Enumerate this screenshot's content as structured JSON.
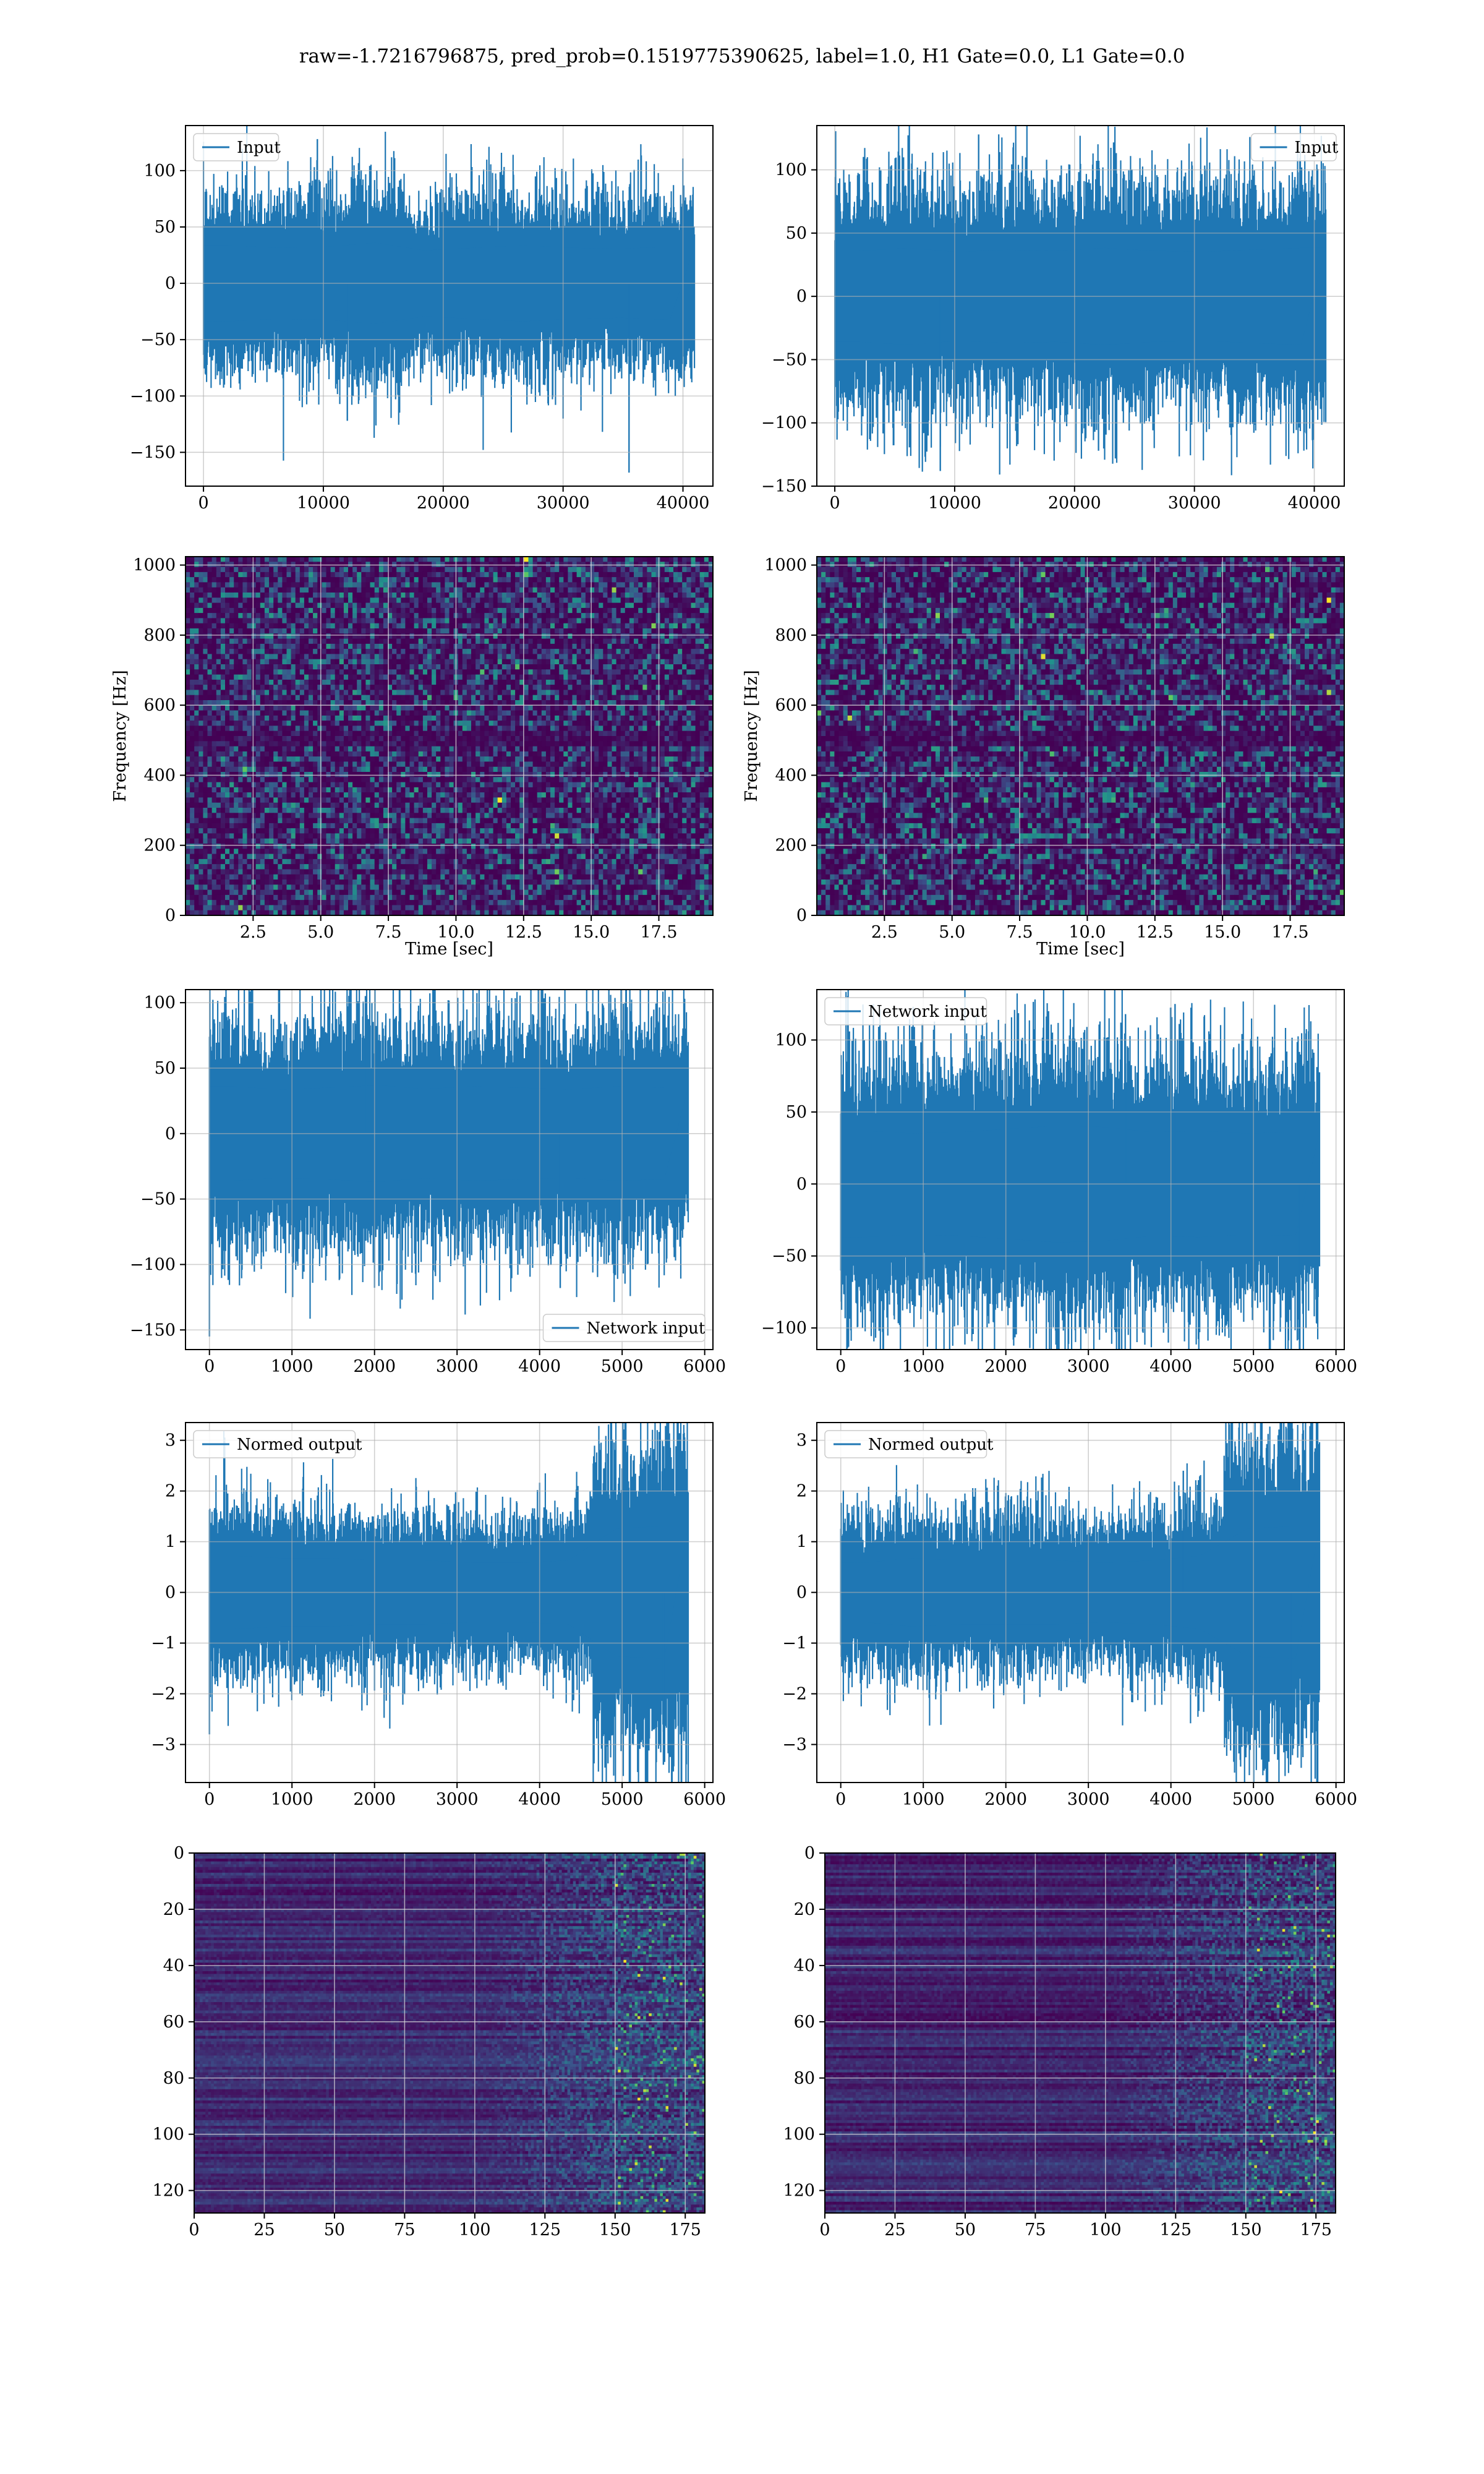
{
  "suptitle": "raw=-1.7216796875, pred_prob=0.1519775390625, label=1.0, H1 Gate=0.0, L1 Gate=0.0",
  "colors": {
    "series": "#1f77b4",
    "grid": "#b0b0b0",
    "viridis_low": "#440154",
    "viridis_high": "#fde725"
  },
  "chart_data": [
    {
      "id": "input-h1",
      "type": "line",
      "legend": {
        "label": "Input",
        "loc": "upper-left"
      },
      "xlim": [
        -1500,
        42500
      ],
      "ylim": [
        -180,
        140
      ],
      "xticks": [
        0,
        10000,
        20000,
        30000,
        40000
      ],
      "yticks": [
        -150,
        -100,
        -50,
        0,
        50,
        100
      ],
      "series": [
        {
          "name": "Input",
          "n": 40960,
          "envelope": [
            75,
            70,
            72,
            80,
            65,
            70,
            75,
            70,
            68,
            72
          ],
          "spikes": [
            {
              "x": 9500,
              "y": 128
            },
            {
              "x": 12000,
              "y": -122
            },
            {
              "x": 30000,
              "y": -120
            },
            {
              "x": 35500,
              "y": -168
            }
          ]
        }
      ]
    },
    {
      "id": "input-l1",
      "type": "line",
      "legend": {
        "label": "Input",
        "loc": "upper-right"
      },
      "xlim": [
        -1500,
        42500
      ],
      "ylim": [
        -150,
        135
      ],
      "xticks": [
        0,
        10000,
        20000,
        30000,
        40000
      ],
      "yticks": [
        -150,
        -100,
        -50,
        0,
        50,
        100
      ],
      "series": [
        {
          "name": "Input",
          "n": 40960,
          "envelope": [
            80,
            85,
            78,
            82,
            80,
            85,
            80,
            78,
            82,
            85
          ],
          "spikes": [
            {
              "x": 8800,
              "y": -138
            },
            {
              "x": 12000,
              "y": 128
            },
            {
              "x": 22000,
              "y": -122
            }
          ]
        }
      ]
    },
    {
      "id": "spec-h1",
      "type": "heatmap",
      "xlabel": "Time [sec]",
      "ylabel": "Frequency [Hz]",
      "xlim": [
        0,
        19.5
      ],
      "ylim": [
        0,
        1024
      ],
      "xticks": [
        2.5,
        5.0,
        7.5,
        10.0,
        12.5,
        15.0,
        17.5
      ],
      "yticks": [
        0,
        200,
        400,
        600,
        800,
        1000
      ],
      "colormap": "viridis"
    },
    {
      "id": "spec-l1",
      "type": "heatmap",
      "xlabel": "Time [sec]",
      "ylabel": "Frequency [Hz]",
      "xlim": [
        0,
        19.5
      ],
      "ylim": [
        0,
        1024
      ],
      "xticks": [
        2.5,
        5.0,
        7.5,
        10.0,
        12.5,
        15.0,
        17.5
      ],
      "yticks": [
        0,
        200,
        400,
        600,
        800,
        1000
      ],
      "colormap": "viridis"
    },
    {
      "id": "net-h1",
      "type": "line",
      "legend": {
        "label": "Network input",
        "loc": "lower-right"
      },
      "xlim": [
        -290,
        6100
      ],
      "ylim": [
        -165,
        110
      ],
      "xticks": [
        0,
        1000,
        2000,
        3000,
        4000,
        5000,
        6000
      ],
      "yticks": [
        -150,
        -100,
        -50,
        0,
        50,
        100
      ],
      "series": [
        {
          "name": "Network input",
          "n": 5800,
          "envelope": [
            80,
            75,
            78,
            82,
            76,
            80,
            78,
            75,
            80,
            78
          ],
          "spikes": [
            {
              "x": 0,
              "y": -155
            },
            {
              "x": 1900,
              "y": 102
            },
            {
              "x": 4250,
              "y": -118
            }
          ]
        }
      ]
    },
    {
      "id": "net-l1",
      "type": "line",
      "legend": {
        "label": "Network input",
        "loc": "upper-left"
      },
      "xlim": [
        -290,
        6100
      ],
      "ylim": [
        -115,
        135
      ],
      "xticks": [
        0,
        1000,
        2000,
        3000,
        4000,
        5000,
        6000
      ],
      "yticks": [
        -100,
        -50,
        0,
        50,
        100
      ],
      "series": [
        {
          "name": "Network input",
          "n": 5800,
          "envelope": [
            82,
            78,
            80,
            85,
            90,
            88,
            80,
            82,
            78,
            80
          ],
          "spikes": [
            {
              "x": 3450,
              "y": 118
            },
            {
              "x": 4050,
              "y": 125
            },
            {
              "x": 5550,
              "y": -108
            }
          ]
        }
      ]
    },
    {
      "id": "norm-h1",
      "type": "line",
      "legend": {
        "label": "Normed output",
        "loc": "upper-left"
      },
      "xlim": [
        -290,
        6100
      ],
      "ylim": [
        -3.75,
        3.35
      ],
      "xticks": [
        0,
        1000,
        2000,
        3000,
        4000,
        5000,
        6000
      ],
      "yticks": [
        -3,
        -2,
        -1,
        0,
        1,
        2,
        3
      ],
      "series": [
        {
          "name": "Normed output",
          "n": 5800,
          "envelope": [
            1.6,
            1.5,
            1.5,
            1.4,
            1.4,
            1.3,
            1.3,
            1.4,
            2.8,
            2.9
          ],
          "spikes": [
            {
              "x": 0,
              "y": -2.8
            },
            {
              "x": 5450,
              "y": 3.1
            },
            {
              "x": 5500,
              "y": -3.4
            }
          ]
        }
      ]
    },
    {
      "id": "norm-l1",
      "type": "line",
      "legend": {
        "label": "Normed output",
        "loc": "upper-left"
      },
      "xlim": [
        -290,
        6100
      ],
      "ylim": [
        -3.75,
        3.35
      ],
      "xticks": [
        0,
        1000,
        2000,
        3000,
        4000,
        5000,
        6000
      ],
      "yticks": [
        -3,
        -2,
        -1,
        0,
        1,
        2,
        3
      ],
      "series": [
        {
          "name": "Normed output",
          "n": 5800,
          "envelope": [
            1.3,
            1.5,
            1.4,
            1.4,
            1.4,
            1.3,
            1.4,
            1.6,
            2.8,
            2.9
          ],
          "spikes": [
            {
              "x": 5300,
              "y": 3.1
            },
            {
              "x": 5450,
              "y": -3.4
            },
            {
              "x": 4150,
              "y": 2.4
            }
          ]
        }
      ]
    },
    {
      "id": "feat-h1",
      "type": "heatmap",
      "xlim": [
        0,
        182
      ],
      "ylim": [
        128,
        0
      ],
      "xticks": [
        0,
        25,
        50,
        75,
        100,
        125,
        150,
        175
      ],
      "yticks": [
        0,
        20,
        40,
        60,
        80,
        100,
        120
      ],
      "colormap": "viridis"
    },
    {
      "id": "feat-l1",
      "type": "heatmap",
      "xlim": [
        0,
        182
      ],
      "ylim": [
        128,
        0
      ],
      "xticks": [
        0,
        25,
        50,
        75,
        100,
        125,
        150,
        175
      ],
      "yticks": [
        0,
        20,
        40,
        60,
        80,
        100,
        120
      ],
      "colormap": "viridis"
    }
  ]
}
